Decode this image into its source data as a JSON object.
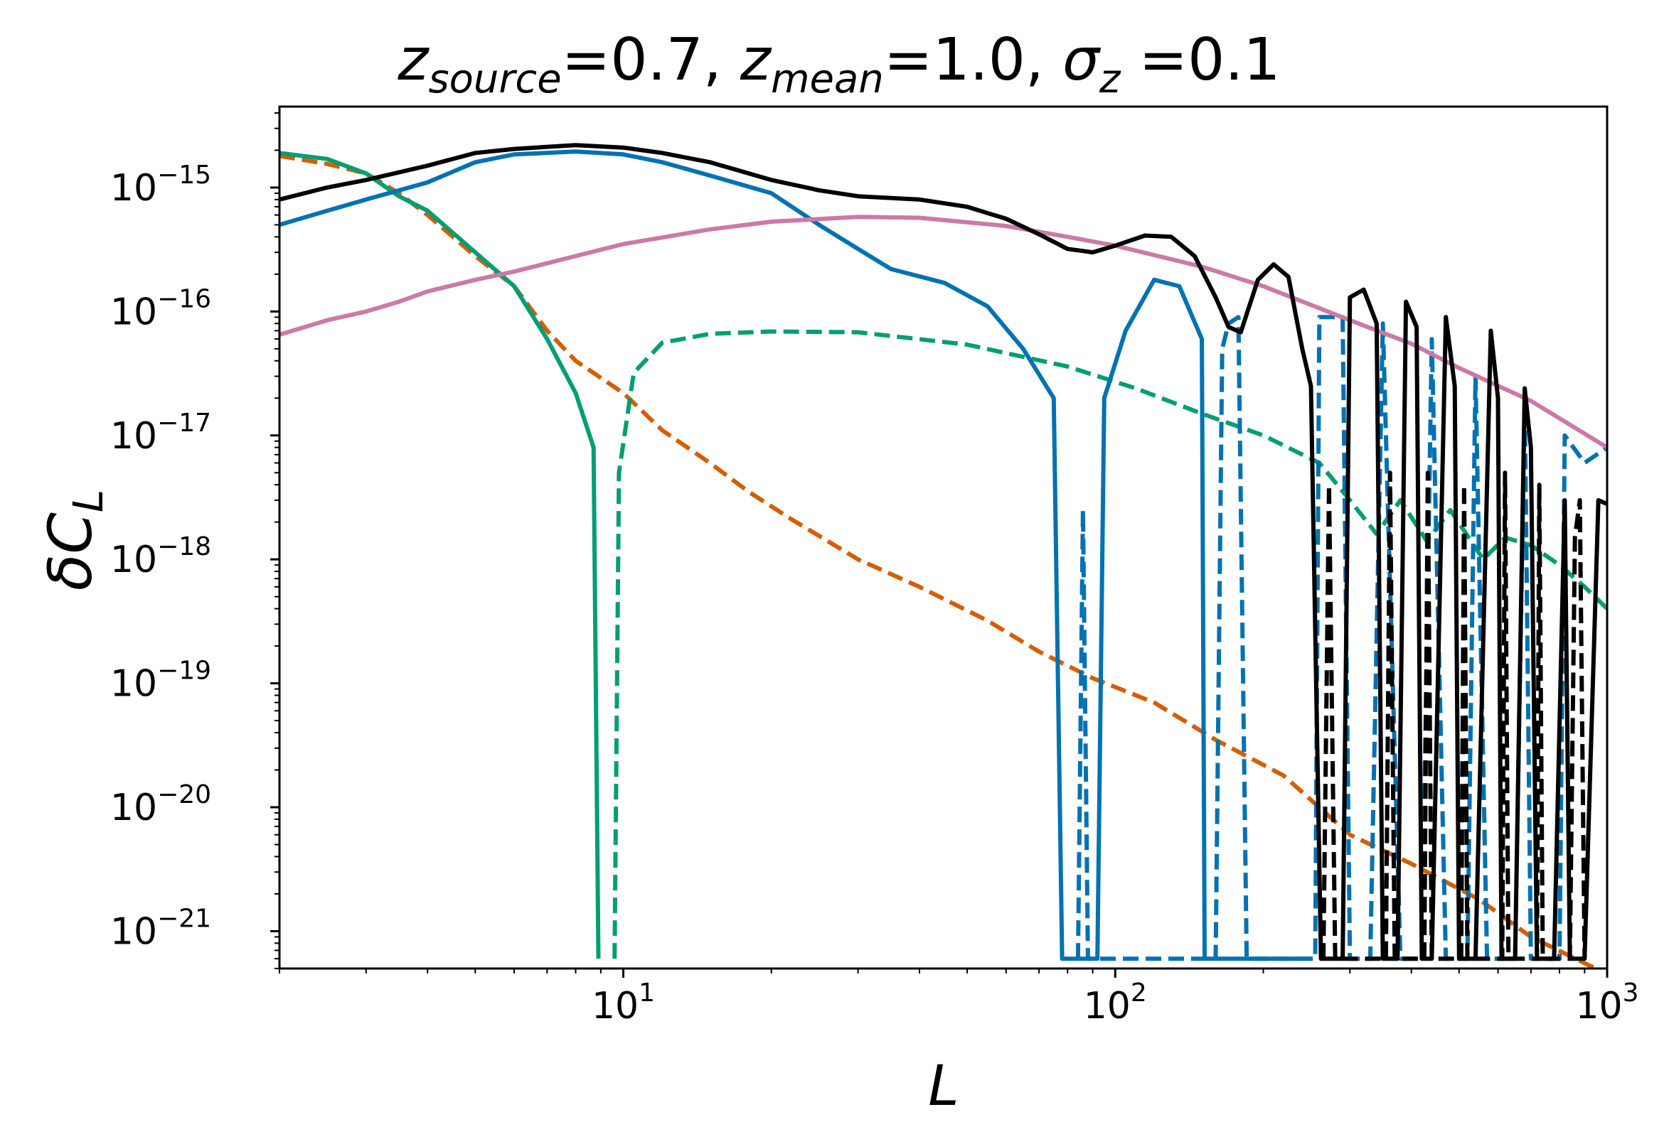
{
  "chart_data": {
    "type": "line",
    "title": {
      "z_source_var": "z",
      "z_source_sub": "source",
      "z_source_val": "=0.7, ",
      "z_mean_var": "z",
      "z_mean_sub": "mean",
      "z_mean_val": "=1.0, ",
      "sigma_var": "σ",
      "sigma_sub": "z",
      "sigma_val": " =0.1"
    },
    "xlabel": "L",
    "ylabel": {
      "delta": "δ",
      "C": "C",
      "sub": "L"
    },
    "xscale": "log",
    "yscale": "log",
    "xlim": [
      2,
      1000
    ],
    "ylim": [
      5e-22,
      4.5e-15
    ],
    "x_ticks": [
      {
        "value": 10,
        "base": "10",
        "exp": "1"
      },
      {
        "value": 100,
        "base": "10",
        "exp": "2"
      },
      {
        "value": 1000,
        "base": "10",
        "exp": "3"
      }
    ],
    "y_ticks": [
      {
        "value": 1e-15,
        "base": "10",
        "exp": "−15"
      },
      {
        "value": 1e-16,
        "base": "10",
        "exp": "−16"
      },
      {
        "value": 1e-17,
        "base": "10",
        "exp": "−17"
      },
      {
        "value": 1e-18,
        "base": "10",
        "exp": "−18"
      },
      {
        "value": 1e-19,
        "base": "10",
        "exp": "−19"
      },
      {
        "value": 1e-20,
        "base": "10",
        "exp": "−20"
      },
      {
        "value": 1e-21,
        "base": "10",
        "exp": "−21"
      }
    ],
    "series": [
      {
        "name": "orange-dashed",
        "color": "#d55e00",
        "dashed": true,
        "points": [
          [
            2,
            1.8e-15
          ],
          [
            2.5,
            1.55e-15
          ],
          [
            3,
            1.3e-15
          ],
          [
            3.5,
            9e-16
          ],
          [
            4,
            6e-16
          ],
          [
            5,
            2.8e-16
          ],
          [
            6,
            1.6e-16
          ],
          [
            7,
            7e-17
          ],
          [
            8,
            4e-17
          ],
          [
            10,
            2.2e-17
          ],
          [
            12,
            1.1e-17
          ],
          [
            15,
            6e-18
          ],
          [
            18,
            3.5e-18
          ],
          [
            22,
            2.1e-18
          ],
          [
            30,
            1e-18
          ],
          [
            40,
            6e-19
          ],
          [
            55,
            3.2e-19
          ],
          [
            70,
            1.8e-19
          ],
          [
            90,
            1.1e-19
          ],
          [
            120,
            7e-20
          ],
          [
            160,
            3.5e-20
          ],
          [
            220,
            1.8e-20
          ],
          [
            300,
            6e-21
          ],
          [
            400,
            3.5e-21
          ],
          [
            550,
            1.8e-21
          ],
          [
            700,
            9e-22
          ],
          [
            1000,
            4.5e-22
          ]
        ]
      },
      {
        "name": "green-solid",
        "color": "#009e73",
        "dashed": false,
        "points": [
          [
            2,
            1.9e-15
          ],
          [
            2.5,
            1.7e-15
          ],
          [
            3,
            1.3e-15
          ],
          [
            3.5,
            8.5e-16
          ],
          [
            4,
            6.5e-16
          ],
          [
            5,
            3e-16
          ],
          [
            6,
            1.6e-16
          ],
          [
            7,
            6e-17
          ],
          [
            8,
            2.2e-17
          ],
          [
            8.7,
            8e-18
          ],
          [
            8.9,
            6e-22
          ]
        ]
      },
      {
        "name": "green-dashed",
        "color": "#009e73",
        "dashed": true,
        "points": [
          [
            9.6,
            6e-22
          ],
          [
            9.8,
            5e-18
          ],
          [
            10.5,
            3.2e-17
          ],
          [
            12,
            5.6e-17
          ],
          [
            15,
            6.6e-17
          ],
          [
            20,
            6.9e-17
          ],
          [
            30,
            6.8e-17
          ],
          [
            50,
            5.4e-17
          ],
          [
            80,
            3.6e-17
          ],
          [
            110,
            2.4e-17
          ],
          [
            150,
            1.5e-17
          ],
          [
            200,
            1e-17
          ],
          [
            260,
            6e-18
          ],
          [
            300,
            3e-18
          ],
          [
            340,
            1.6e-18
          ],
          [
            380,
            3e-18
          ],
          [
            430,
            1.4e-18
          ],
          [
            480,
            2.5e-18
          ],
          [
            560,
            1e-18
          ],
          [
            620,
            1.5e-18
          ],
          [
            700,
            1.3e-18
          ],
          [
            800,
            9e-19
          ],
          [
            900,
            6e-19
          ],
          [
            1000,
            4e-19
          ]
        ]
      },
      {
        "name": "blue-solid",
        "color": "#0072b2",
        "dashed": false,
        "points": [
          [
            2,
            5e-16
          ],
          [
            2.5,
            6.5e-16
          ],
          [
            3,
            8e-16
          ],
          [
            4,
            1.1e-15
          ],
          [
            5,
            1.6e-15
          ],
          [
            6,
            1.85e-15
          ],
          [
            8,
            1.95e-15
          ],
          [
            10,
            1.85e-15
          ],
          [
            12,
            1.6e-15
          ],
          [
            15,
            1.25e-15
          ],
          [
            20,
            9e-16
          ],
          [
            25,
            5e-16
          ],
          [
            30,
            3.2e-16
          ],
          [
            35,
            2.2e-16
          ],
          [
            45,
            1.7e-16
          ],
          [
            55,
            1.1e-16
          ],
          [
            65,
            5e-17
          ],
          [
            75,
            2e-17
          ],
          [
            78,
            6e-22
          ],
          [
            92,
            6e-22
          ],
          [
            95,
            2e-17
          ],
          [
            105,
            7e-17
          ],
          [
            120,
            1.8e-16
          ],
          [
            135,
            1.6e-16
          ],
          [
            150,
            6e-17
          ],
          [
            152,
            6e-22
          ],
          [
            250,
            6e-22
          ]
        ]
      },
      {
        "name": "blue-dashed",
        "color": "#0072b2",
        "dashed": true,
        "points": [
          [
            84,
            6e-22
          ],
          [
            86,
            2.5e-18
          ],
          [
            88,
            6e-22
          ],
          [
            160,
            6e-22
          ],
          [
            165,
            5e-17
          ],
          [
            170,
            8e-17
          ],
          [
            178,
            9e-17
          ],
          [
            185,
            6e-22
          ],
          [
            255,
            6e-22
          ],
          [
            260,
            9e-17
          ],
          [
            290,
            9e-17
          ],
          [
            300,
            6e-22
          ],
          [
            330,
            6e-22
          ],
          [
            350,
            8e-17
          ],
          [
            380,
            6e-22
          ],
          [
            420,
            6e-22
          ],
          [
            440,
            6e-17
          ],
          [
            470,
            6e-22
          ],
          [
            520,
            6e-22
          ],
          [
            540,
            3e-17
          ],
          [
            570,
            6e-22
          ],
          [
            650,
            6e-22
          ],
          [
            680,
            2e-17
          ],
          [
            700,
            6e-22
          ],
          [
            800,
            6e-22
          ],
          [
            820,
            1e-17
          ],
          [
            900,
            6e-18
          ],
          [
            1000,
            8e-18
          ]
        ]
      },
      {
        "name": "pink-solid",
        "color": "#cc79a7",
        "dashed": false,
        "points": [
          [
            2,
            6.5e-17
          ],
          [
            2.5,
            8.5e-17
          ],
          [
            3,
            1e-16
          ],
          [
            3.5,
            1.2e-16
          ],
          [
            4,
            1.45e-16
          ],
          [
            5,
            1.8e-16
          ],
          [
            6,
            2.1e-16
          ],
          [
            8,
            2.8e-16
          ],
          [
            10,
            3.5e-16
          ],
          [
            15,
            4.6e-16
          ],
          [
            20,
            5.3e-16
          ],
          [
            30,
            5.8e-16
          ],
          [
            40,
            5.7e-16
          ],
          [
            60,
            4.9e-16
          ],
          [
            80,
            4e-16
          ],
          [
            100,
            3.4e-16
          ],
          [
            150,
            2.3e-16
          ],
          [
            200,
            1.6e-16
          ],
          [
            300,
            8.5e-17
          ],
          [
            400,
            5.5e-17
          ],
          [
            500,
            3.5e-17
          ],
          [
            700,
            1.9e-17
          ],
          [
            1000,
            8e-18
          ]
        ]
      },
      {
        "name": "black-solid",
        "color": "#000000",
        "dashed": false,
        "points": [
          [
            2,
            8e-16
          ],
          [
            2.5,
            1e-15
          ],
          [
            3,
            1.15e-15
          ],
          [
            4,
            1.5e-15
          ],
          [
            5,
            1.9e-15
          ],
          [
            6,
            2.05e-15
          ],
          [
            8,
            2.2e-15
          ],
          [
            10,
            2.1e-15
          ],
          [
            12,
            1.9e-15
          ],
          [
            15,
            1.6e-15
          ],
          [
            20,
            1.15e-15
          ],
          [
            25,
            9.5e-16
          ],
          [
            30,
            8.5e-16
          ],
          [
            40,
            8e-16
          ],
          [
            50,
            7e-16
          ],
          [
            60,
            5.6e-16
          ],
          [
            70,
            4.2e-16
          ],
          [
            80,
            3.2e-16
          ],
          [
            90,
            3e-16
          ],
          [
            100,
            3.4e-16
          ],
          [
            115,
            4.1e-16
          ],
          [
            130,
            4e-16
          ],
          [
            145,
            2.8e-16
          ],
          [
            160,
            1.3e-16
          ],
          [
            170,
            7.5e-17
          ],
          [
            180,
            6.8e-17
          ],
          [
            195,
            1.8e-16
          ],
          [
            210,
            2.4e-16
          ],
          [
            225,
            1.9e-16
          ],
          [
            240,
            5e-17
          ],
          [
            250,
            2.5e-17
          ],
          [
            262,
            6e-22
          ],
          [
            290,
            6e-22
          ],
          [
            300,
            1.3e-16
          ],
          [
            320,
            1.5e-16
          ],
          [
            340,
            8e-17
          ],
          [
            350,
            6e-22
          ],
          [
            375,
            6e-22
          ],
          [
            390,
            1.2e-16
          ],
          [
            410,
            7.5e-17
          ],
          [
            420,
            6e-22
          ],
          [
            440,
            6e-22
          ],
          [
            470,
            9e-17
          ],
          [
            490,
            2.5e-17
          ],
          [
            500,
            6e-22
          ],
          [
            540,
            6e-22
          ],
          [
            580,
            7e-17
          ],
          [
            600,
            2e-17
          ],
          [
            610,
            6e-22
          ],
          [
            650,
            6e-22
          ],
          [
            680,
            2.4e-17
          ],
          [
            700,
            8e-18
          ],
          [
            720,
            6e-22
          ],
          [
            780,
            6e-22
          ],
          [
            820,
            3e-18
          ],
          [
            840,
            6e-22
          ],
          [
            900,
            6e-22
          ],
          [
            960,
            3e-18
          ],
          [
            1000,
            2.8e-18
          ]
        ]
      },
      {
        "name": "black-dashed",
        "color": "#000000",
        "dashed": true,
        "points": [
          [
            265,
            6e-22
          ],
          [
            272,
            4e-18
          ],
          [
            280,
            6e-22
          ],
          [
            355,
            6e-22
          ],
          [
            362,
            5e-18
          ],
          [
            370,
            6e-22
          ],
          [
            425,
            6e-22
          ],
          [
            432,
            5e-18
          ],
          [
            440,
            6e-22
          ],
          [
            505,
            6e-22
          ],
          [
            512,
            4e-18
          ],
          [
            520,
            6e-22
          ],
          [
            612,
            6e-22
          ],
          [
            620,
            5e-18
          ],
          [
            630,
            6e-22
          ],
          [
            720,
            6e-22
          ],
          [
            728,
            4e-18
          ],
          [
            740,
            6e-22
          ],
          [
            840,
            6e-22
          ],
          [
            860,
            1.5e-18
          ],
          [
            880,
            3e-18
          ],
          [
            900,
            6e-22
          ]
        ]
      }
    ]
  }
}
